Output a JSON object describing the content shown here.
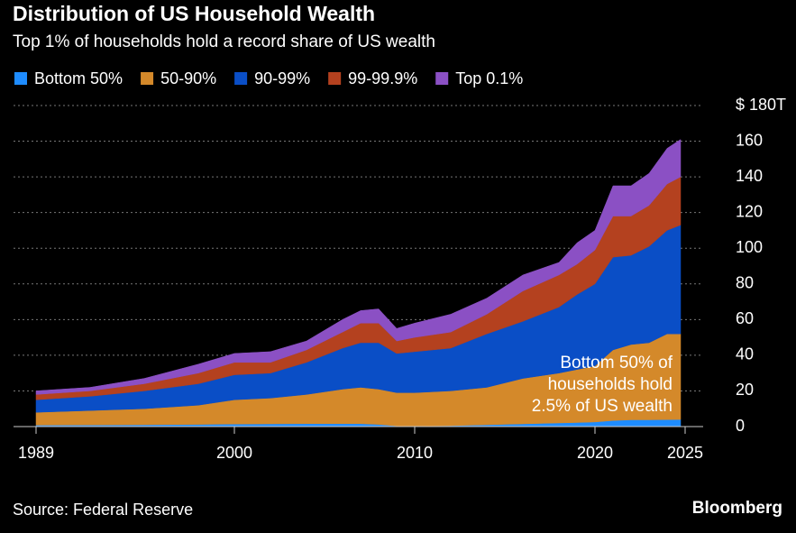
{
  "chart_data": {
    "type": "stacked_area",
    "title": "Distribution of US Household Wealth",
    "subtitle": "Top 1% of households hold a record share of US wealth",
    "x": [
      1989,
      1992,
      1995,
      1998,
      2000,
      2002,
      2004,
      2006,
      2007,
      2008,
      2009,
      2010,
      2012,
      2014,
      2016,
      2018,
      2019,
      2020,
      2021,
      2022,
      2023,
      2024,
      2024.75
    ],
    "series": [
      {
        "name": "Bottom 50%",
        "color": "#1e8cff",
        "values": [
          0.8,
          0.9,
          1.0,
          1.2,
          1.4,
          1.5,
          1.6,
          1.6,
          1.6,
          1.2,
          0.4,
          0.3,
          0.5,
          1.0,
          1.5,
          2.0,
          2.3,
          2.6,
          3.4,
          3.8,
          3.8,
          3.9,
          4.0
        ]
      },
      {
        "name": "50-90%",
        "color": "#d4892a",
        "values": [
          7.2,
          8.1,
          9,
          10.8,
          13.6,
          14.5,
          16.4,
          19.4,
          20.4,
          19.8,
          18.6,
          18.7,
          19.5,
          21,
          25.5,
          28,
          29.7,
          31.4,
          39.6,
          42.2,
          43.2,
          48.1,
          48
        ]
      },
      {
        "name": "90-99%",
        "color": "#0a4ec6",
        "values": [
          7,
          8,
          10,
          12,
          14,
          14,
          18,
          23,
          25,
          26,
          22,
          23,
          24,
          30,
          32,
          37,
          42,
          46,
          52,
          50,
          54,
          58,
          61
        ]
      },
      {
        "name": "99-99.9%",
        "color": "#b4411f",
        "values": [
          3,
          3,
          4,
          6,
          7,
          6,
          7,
          9,
          11,
          11,
          7,
          8,
          9,
          11,
          17,
          18,
          17,
          19,
          23,
          22,
          23,
          26,
          27
        ]
      },
      {
        "name": "Top 0.1%",
        "color": "#8b50c4",
        "values": [
          2,
          2,
          3,
          5,
          5,
          6,
          5,
          7,
          7,
          8,
          7,
          8,
          10,
          9,
          9,
          7,
          12,
          11,
          17,
          17,
          18,
          20,
          21
        ]
      }
    ],
    "xlim": [
      1987.75,
      2026
    ],
    "xticks": [
      1989,
      2000,
      2010,
      2020,
      2025
    ],
    "ylim": [
      0,
      180
    ],
    "yticks": [
      0,
      20,
      40,
      60,
      80,
      100,
      120,
      140,
      160,
      {
        "value": 180,
        "label": "$ 180T"
      }
    ],
    "grid": true,
    "annotation": [
      "Bottom 50% of",
      "households hold",
      "2.5% of US wealth"
    ],
    "source": "Source: Federal Reserve",
    "brand": "Bloomberg"
  }
}
